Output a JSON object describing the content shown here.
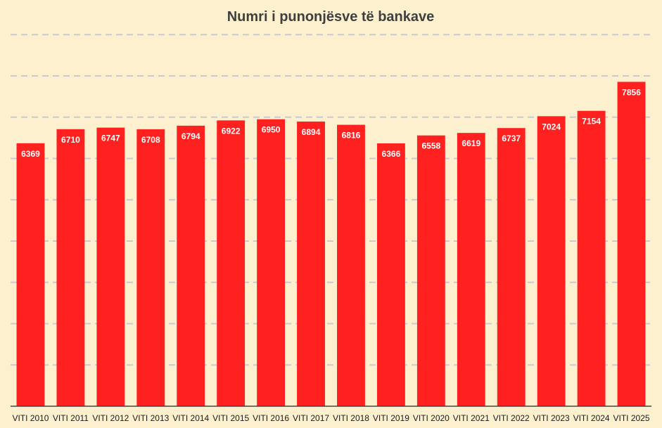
{
  "chart_data": {
    "type": "bar",
    "title": "Numri i punonjësve të bankave",
    "xlabel": "",
    "ylabel": "",
    "categories": [
      "VITI 2010",
      "VITI 2011",
      "VITI 2012",
      "VITI 2013",
      "VITI 2014",
      "VITI 2015",
      "VITI 2016",
      "VITI 2017",
      "VITI 2018",
      "VITI 2019",
      "VITI 2020",
      "VITI 2021",
      "VITI 2022",
      "VITI 2023",
      "VITI 2024",
      "VITI 2025"
    ],
    "values": [
      6369,
      6710,
      6747,
      6708,
      6794,
      6922,
      6950,
      6894,
      6816,
      6366,
      6558,
      6619,
      6737,
      7024,
      7154,
      7856
    ],
    "ylim": [
      0,
      8800
    ],
    "gridlines": [
      1000,
      2000,
      3000,
      4000,
      5000,
      6000,
      7000,
      8000,
      9000
    ],
    "grid": true,
    "legend": "none",
    "bar_color": "#ff2020",
    "background": "#fdf0cf"
  }
}
